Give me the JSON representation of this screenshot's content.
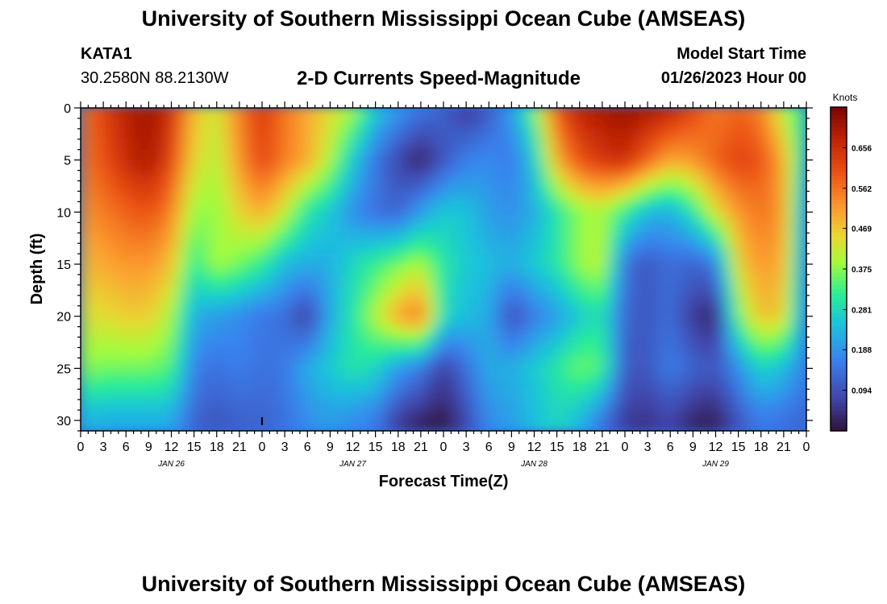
{
  "header": {
    "title": "University of Southern Mississippi Ocean Cube (AMSEAS)",
    "station": "KATA1",
    "coords": "30.2580N  88.2130W",
    "chart_title": "2-D Currents Speed-Magnitude",
    "model_start_label": "Model Start Time",
    "model_start_value": "01/26/2023 Hour 00"
  },
  "footer": {
    "title": "University of Southern Mississippi Ocean Cube (AMSEAS)"
  },
  "chart_data": {
    "type": "heatmap",
    "title": "2-D Currents Speed-Magnitude",
    "xlabel": "Forecast Time(Z)",
    "ylabel": "Depth (ft)",
    "x_hours_range": [
      0,
      96
    ],
    "ylim": [
      0,
      31
    ],
    "y_ticks": [
      0,
      5,
      10,
      15,
      20,
      25,
      30
    ],
    "x_ticks": [
      "0",
      "3",
      "6",
      "9",
      "12",
      "15",
      "18",
      "21",
      "0",
      "3",
      "6",
      "9",
      "12",
      "15",
      "18",
      "21",
      "0",
      "3",
      "6",
      "9",
      "12",
      "15",
      "18",
      "21",
      "0",
      "3",
      "6",
      "9",
      "12",
      "15",
      "18",
      "21",
      "0"
    ],
    "date_labels": [
      {
        "label": "JAN 26",
        "hour": 12
      },
      {
        "label": "JAN 27",
        "hour": 36
      },
      {
        "label": "JAN 28",
        "hour": 60
      },
      {
        "label": "JAN 29",
        "hour": 84
      }
    ],
    "colorbar": {
      "unit": "Knots",
      "min": 0.0,
      "max": 0.75,
      "ticks": [
        "0.656",
        "0.562",
        "0.469",
        "0.375",
        "0.281",
        "0.188",
        "0.094"
      ],
      "tick_values": [
        0.656,
        0.562,
        0.469,
        0.375,
        0.281,
        0.188,
        0.094
      ]
    },
    "depths_ft": [
      0,
      5,
      10,
      15,
      20,
      25,
      30
    ],
    "hours": [
      0,
      3,
      6,
      9,
      12,
      15,
      18,
      21,
      24,
      27,
      30,
      33,
      36,
      39,
      42,
      45,
      48,
      51,
      54,
      57,
      60,
      63,
      66,
      69,
      72,
      75,
      78,
      81,
      84,
      87,
      90,
      93,
      96
    ],
    "speed_knots": [
      [
        0.55,
        0.62,
        0.68,
        0.71,
        0.66,
        0.48,
        0.42,
        0.55,
        0.64,
        0.56,
        0.5,
        0.45,
        0.4,
        0.26,
        0.2,
        0.15,
        0.12,
        0.05,
        0.1,
        0.2,
        0.35,
        0.6,
        0.68,
        0.7,
        0.72,
        0.7,
        0.68,
        0.62,
        0.55,
        0.58,
        0.55,
        0.4,
        0.3
      ],
      [
        0.55,
        0.6,
        0.66,
        0.7,
        0.62,
        0.45,
        0.4,
        0.52,
        0.62,
        0.55,
        0.5,
        0.4,
        0.26,
        0.15,
        0.08,
        0.02,
        0.1,
        0.16,
        0.18,
        0.15,
        0.25,
        0.5,
        0.6,
        0.64,
        0.66,
        0.58,
        0.5,
        0.52,
        0.58,
        0.62,
        0.6,
        0.5,
        0.25
      ],
      [
        0.52,
        0.55,
        0.58,
        0.6,
        0.55,
        0.38,
        0.38,
        0.45,
        0.5,
        0.42,
        0.3,
        0.26,
        0.18,
        0.14,
        0.12,
        0.2,
        0.26,
        0.25,
        0.2,
        0.18,
        0.22,
        0.3,
        0.38,
        0.4,
        0.32,
        0.24,
        0.22,
        0.3,
        0.44,
        0.52,
        0.56,
        0.52,
        0.18
      ],
      [
        0.48,
        0.5,
        0.52,
        0.52,
        0.48,
        0.3,
        0.4,
        0.36,
        0.32,
        0.24,
        0.22,
        0.22,
        0.28,
        0.32,
        0.36,
        0.4,
        0.3,
        0.26,
        0.24,
        0.22,
        0.26,
        0.3,
        0.38,
        0.42,
        0.14,
        0.1,
        0.14,
        0.12,
        0.15,
        0.46,
        0.52,
        0.5,
        0.16
      ],
      [
        0.44,
        0.44,
        0.46,
        0.46,
        0.4,
        0.22,
        0.2,
        0.18,
        0.15,
        0.14,
        0.06,
        0.22,
        0.3,
        0.4,
        0.5,
        0.56,
        0.28,
        0.24,
        0.22,
        0.08,
        0.16,
        0.2,
        0.26,
        0.3,
        0.12,
        0.1,
        0.14,
        0.06,
        0.02,
        0.36,
        0.48,
        0.46,
        0.16
      ],
      [
        0.38,
        0.36,
        0.36,
        0.36,
        0.34,
        0.16,
        0.14,
        0.16,
        0.14,
        0.15,
        0.22,
        0.26,
        0.3,
        0.28,
        0.2,
        0.16,
        0.06,
        0.14,
        0.22,
        0.22,
        0.26,
        0.3,
        0.36,
        0.34,
        0.1,
        0.1,
        0.16,
        0.12,
        0.1,
        0.18,
        0.28,
        0.24,
        0.16
      ],
      [
        0.24,
        0.22,
        0.22,
        0.22,
        0.22,
        0.12,
        0.1,
        0.12,
        0.12,
        0.14,
        0.18,
        0.2,
        0.18,
        0.16,
        0.06,
        0.03,
        0.01,
        0.08,
        0.18,
        0.2,
        0.24,
        0.28,
        0.24,
        0.15,
        0.06,
        0.05,
        0.08,
        0.03,
        0.02,
        0.1,
        0.16,
        0.14,
        0.12
      ]
    ],
    "markers": [
      {
        "label": "I",
        "hour": 24,
        "depth_ft": 30
      }
    ]
  }
}
